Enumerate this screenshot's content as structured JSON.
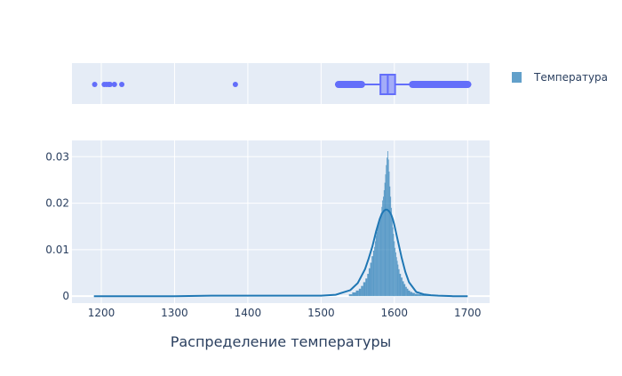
{
  "colors": {
    "plot_bg": "#E5ECF6",
    "grid": "#ffffff",
    "histogram": "#1f77b4",
    "kde_line": "#1f77b4",
    "box": "#636EFA",
    "text": "#2a3f5f"
  },
  "legend": {
    "items": [
      {
        "label": "Температура",
        "icon": "legend-swatch-square"
      }
    ]
  },
  "chart_data": [
    {
      "type": "box",
      "orientation": "horizontal",
      "series": [
        {
          "name": "Температура"
        }
      ],
      "q1": 1581,
      "median": 1591,
      "q3": 1601,
      "whisker_low": 1519,
      "whisker_high": 1705,
      "outliers": [
        1191,
        1204,
        1207,
        1210,
        1212,
        1218,
        1228,
        1383
      ],
      "xlim": [
        1160,
        1730
      ],
      "grid": true
    },
    {
      "type": "histogram",
      "title": "",
      "xlabel": "Распределение температуры",
      "ylabel": "",
      "xlim": [
        1160,
        1730
      ],
      "ylim": [
        -0.0015,
        0.0335
      ],
      "x_ticks": [
        1200,
        1300,
        1400,
        1500,
        1600,
        1700
      ],
      "y_ticks": [
        0,
        0.01,
        0.02,
        0.03
      ],
      "y_tick_labels": [
        "0",
        "0.01",
        "0.02",
        "0.03"
      ],
      "x_tick_labels": [
        "1200",
        "1300",
        "1400",
        "1500",
        "1600",
        "1700"
      ],
      "grid": true,
      "histogram_bins": {
        "x": [
          1540,
          1545,
          1550,
          1553,
          1556,
          1559,
          1562,
          1564,
          1566,
          1568,
          1570,
          1572,
          1573,
          1574,
          1575,
          1576,
          1577,
          1578,
          1579,
          1580,
          1581,
          1582,
          1583,
          1584,
          1585,
          1586,
          1587,
          1588,
          1589,
          1590,
          1591,
          1592,
          1593,
          1594,
          1595,
          1596,
          1597,
          1598,
          1599,
          1600,
          1601,
          1602,
          1603,
          1604,
          1605,
          1606,
          1608,
          1610,
          1612,
          1614,
          1616,
          1618,
          1620,
          1623,
          1626,
          1630,
          1635,
          1640,
          1648,
          1655
        ],
        "y": [
          0.0004,
          0.0008,
          0.0012,
          0.0016,
          0.0022,
          0.003,
          0.0038,
          0.0048,
          0.006,
          0.0072,
          0.0086,
          0.0098,
          0.0106,
          0.0118,
          0.013,
          0.0138,
          0.0148,
          0.0156,
          0.0162,
          0.0168,
          0.017,
          0.0178,
          0.0192,
          0.0206,
          0.0214,
          0.0228,
          0.0244,
          0.0262,
          0.0282,
          0.0298,
          0.0312,
          0.0294,
          0.0268,
          0.0236,
          0.0214,
          0.019,
          0.0168,
          0.0148,
          0.0134,
          0.0118,
          0.0104,
          0.0094,
          0.0084,
          0.0076,
          0.0068,
          0.0058,
          0.0048,
          0.004,
          0.0032,
          0.0026,
          0.002,
          0.0016,
          0.0012,
          0.0009,
          0.0007,
          0.0005,
          0.0004,
          0.0003,
          0.0002,
          0.0001
        ]
      },
      "kde_curve": {
        "x": [
          1190,
          1250,
          1300,
          1350,
          1400,
          1450,
          1500,
          1520,
          1540,
          1550,
          1560,
          1565,
          1570,
          1575,
          1580,
          1583,
          1586,
          1588,
          1590,
          1592,
          1594,
          1596,
          1598,
          1600,
          1605,
          1610,
          1615,
          1620,
          1630,
          1640,
          1650,
          1660,
          1680,
          1700
        ],
        "y": [
          0,
          0,
          0,
          0.0001,
          0.0001,
          0.0001,
          0.0001,
          0.0003,
          0.0013,
          0.0028,
          0.0058,
          0.0081,
          0.0107,
          0.0139,
          0.0166,
          0.0178,
          0.0184,
          0.0186,
          0.0186,
          0.0184,
          0.018,
          0.0174,
          0.0165,
          0.0153,
          0.0118,
          0.0082,
          0.0052,
          0.003,
          0.0009,
          0.0004,
          0.0002,
          0.0001,
          0,
          0
        ]
      }
    }
  ]
}
